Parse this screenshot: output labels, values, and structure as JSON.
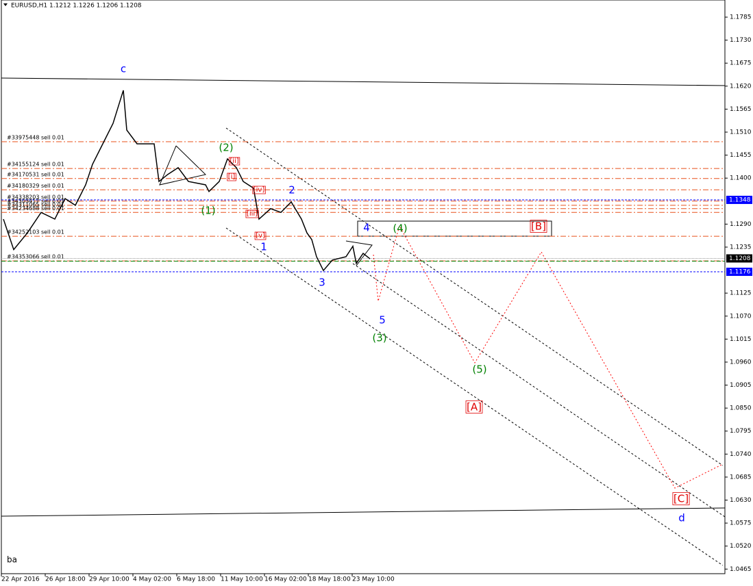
{
  "chart_data": {
    "type": "line",
    "title": "EURUSD,H1  1.1212 1.1226 1.1206 1.1208",
    "corner_label": "ba",
    "xlim": [
      0,
      1056
    ],
    "ylim": [
      1.0454,
      1.1826
    ],
    "xticks": [
      {
        "value": 0,
        "label": "22 Apr 2016"
      },
      {
        "value": 64,
        "label": "26 Apr 18:00"
      },
      {
        "value": 128,
        "label": "29 Apr 10:00"
      },
      {
        "value": 192,
        "label": "4 May 02:00"
      },
      {
        "value": 256,
        "label": "6 May 18:00"
      },
      {
        "value": 320,
        "label": "11 May 10:00"
      },
      {
        "value": 384,
        "label": "16 May 02:00"
      },
      {
        "value": 448,
        "label": "18 May 18:00"
      },
      {
        "value": 512,
        "label": "23 May 10:00"
      }
    ],
    "yticks": [
      1.1785,
      {
        "value": 1.173,
        "label": "1.1730"
      },
      1.1675,
      {
        "value": 1.162,
        "label": "1.1620"
      },
      1.1565,
      {
        "value": 1.151,
        "label": "1.1510"
      },
      1.1455,
      {
        "value": 1.14,
        "label": "1.1400"
      },
      {
        "value": 1.129,
        "label": "1.1290"
      },
      1.1235,
      1.1125,
      {
        "value": 1.107,
        "label": "1.1070"
      },
      1.1015,
      {
        "value": 1.096,
        "label": "1.0960"
      },
      1.0905,
      {
        "value": 1.085,
        "label": "1.0850"
      },
      1.0795,
      {
        "value": 1.074,
        "label": "1.0740"
      },
      1.0685,
      {
        "value": 1.063,
        "label": "1.0630"
      },
      1.0575,
      {
        "value": 1.052,
        "label": "1.0520"
      },
      1.0465
    ],
    "series": [
      {
        "color": "#000000",
        "x": [
          3,
          18,
          38,
          58,
          78,
          93,
          108,
          123,
          133,
          148,
          163,
          178,
          183,
          198,
          223,
          230,
          243,
          258,
          273,
          298,
          303,
          318,
          330,
          343,
          353,
          368,
          376,
          393,
          408,
          423,
          438,
          446,
          453,
          460,
          470,
          483,
          503,
          513,
          518,
          528,
          538
        ],
        "values": [
          1.1302,
          1.1229,
          1.1269,
          1.1318,
          1.1302,
          1.1351,
          1.1335,
          1.1384,
          1.1433,
          1.1482,
          1.1531,
          1.161,
          1.1515,
          1.1482,
          1.1482,
          1.1392,
          1.1409,
          1.1425,
          1.1392,
          1.1384,
          1.1368,
          1.1392,
          1.1446,
          1.1425,
          1.1392,
          1.1376,
          1.1302,
          1.1327,
          1.1318,
          1.1343,
          1.1302,
          1.1269,
          1.1253,
          1.1212,
          1.1179,
          1.1204,
          1.1212,
          1.1237,
          1.1196,
          1.122,
          1.1207
        ]
      }
    ],
    "orders": [
      {
        "label": "#33975448 sell 0.01",
        "value": 1.1487
      },
      {
        "label": "#34155124 sell 0.01",
        "value": 1.1423
      },
      {
        "label": "#34170531 sell 0.01",
        "value": 1.1399
      },
      {
        "label": "#34180329 sell 0.01",
        "value": 1.1372
      },
      {
        "label": "#34338203 sell 0.01",
        "value": 1.1345
      },
      {
        "label": "#34303417 sell 0.01",
        "value": 1.1335
      },
      {
        "label": "#34311065 sell 0.01",
        "value": 1.1327
      },
      {
        "label": "#34234688 sell 0.01",
        "value": 1.1318
      },
      {
        "label": "#34252103 sell 0.01",
        "value": 1.1261
      },
      {
        "label": "#34353066 sell 0.01",
        "value": 1.1202
      }
    ],
    "price_labels": [
      {
        "value": 1.1348,
        "color": "#0000ff"
      },
      {
        "value": 1.1208,
        "color": "#000000"
      },
      {
        "value": 1.1176,
        "color": "#0000ff"
      }
    ],
    "waves": [
      {
        "text": "c",
        "color": "#0000ff"
      },
      {
        "text": "(2)",
        "color": "#008000"
      },
      {
        "text": "(1)",
        "color": "#008000"
      },
      {
        "text": "[ii]",
        "color": "#e00000"
      },
      {
        "text": "[i]",
        "color": "#e00000"
      },
      {
        "text": "[iv]",
        "color": "#e00000"
      },
      {
        "text": "[iii]",
        "color": "#e00000"
      },
      {
        "text": "[v]",
        "color": "#e00000"
      },
      {
        "text": "2",
        "color": "#0000ff"
      },
      {
        "text": "1",
        "color": "#0000ff"
      },
      {
        "text": "3",
        "color": "#0000ff"
      },
      {
        "text": "4",
        "color": "#0000ff"
      },
      {
        "text": "(4)",
        "color": "#008000"
      },
      {
        "text": "[B]",
        "color": "#e00000"
      },
      {
        "text": "5",
        "color": "#0000ff"
      },
      {
        "text": "(3)",
        "color": "#008000"
      },
      {
        "text": "(5)",
        "color": "#008000"
      },
      {
        "text": "[A]",
        "color": "#e00000"
      },
      {
        "text": "[C]",
        "color": "#e00000"
      },
      {
        "text": "d",
        "color": "#0000ff"
      }
    ]
  }
}
